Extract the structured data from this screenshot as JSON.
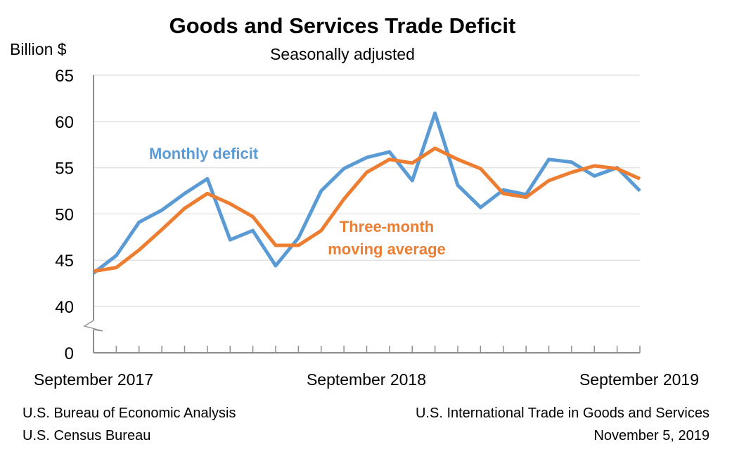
{
  "chart_data": {
    "type": "line",
    "title": "Goods and Services Trade Deficit",
    "subtitle": "Seasonally adjusted",
    "ylabel": "Billion $",
    "ylim": [
      40,
      65
    ],
    "y_axis_break": true,
    "y_ticks": [
      "65",
      "60",
      "55",
      "50",
      "45",
      "40",
      "0"
    ],
    "x_tick_labels": [
      "September 2017",
      "September 2018",
      "September 2019"
    ],
    "x": [
      "2017-09",
      "2017-10",
      "2017-11",
      "2017-12",
      "2018-01",
      "2018-02",
      "2018-03",
      "2018-04",
      "2018-05",
      "2018-06",
      "2018-07",
      "2018-08",
      "2018-09",
      "2018-10",
      "2018-11",
      "2018-12",
      "2019-01",
      "2019-02",
      "2019-03",
      "2019-04",
      "2019-05",
      "2019-06",
      "2019-07",
      "2019-08",
      "2019-09"
    ],
    "grid": true,
    "series": [
      {
        "name": "Monthly deficit",
        "color": "#5B9BD5",
        "values": [
          43.6,
          45.5,
          49.1,
          50.4,
          52.2,
          53.8,
          47.2,
          48.2,
          44.4,
          47.4,
          52.5,
          54.9,
          56.1,
          56.7,
          53.6,
          60.9,
          53.1,
          50.7,
          52.6,
          52.1,
          55.9,
          55.6,
          54.1,
          55.0,
          52.5
        ]
      },
      {
        "name": "Three-month moving average",
        "name_lines": [
          "Three-month",
          "moving average"
        ],
        "color": "#ED7D31",
        "values": [
          43.8,
          44.2,
          46.1,
          48.3,
          50.6,
          52.2,
          51.1,
          49.7,
          46.6,
          46.6,
          48.2,
          51.6,
          54.5,
          55.9,
          55.5,
          57.1,
          55.9,
          54.9,
          52.2,
          51.8,
          53.6,
          54.5,
          55.2,
          54.9,
          53.8
        ]
      }
    ]
  },
  "footer": {
    "left_line1": "U.S. Bureau of Economic Analysis",
    "left_line2": "U.S. Census Bureau",
    "right_line1": "U.S. International Trade in Goods and Services",
    "right_line2": "November 5, 2019"
  }
}
